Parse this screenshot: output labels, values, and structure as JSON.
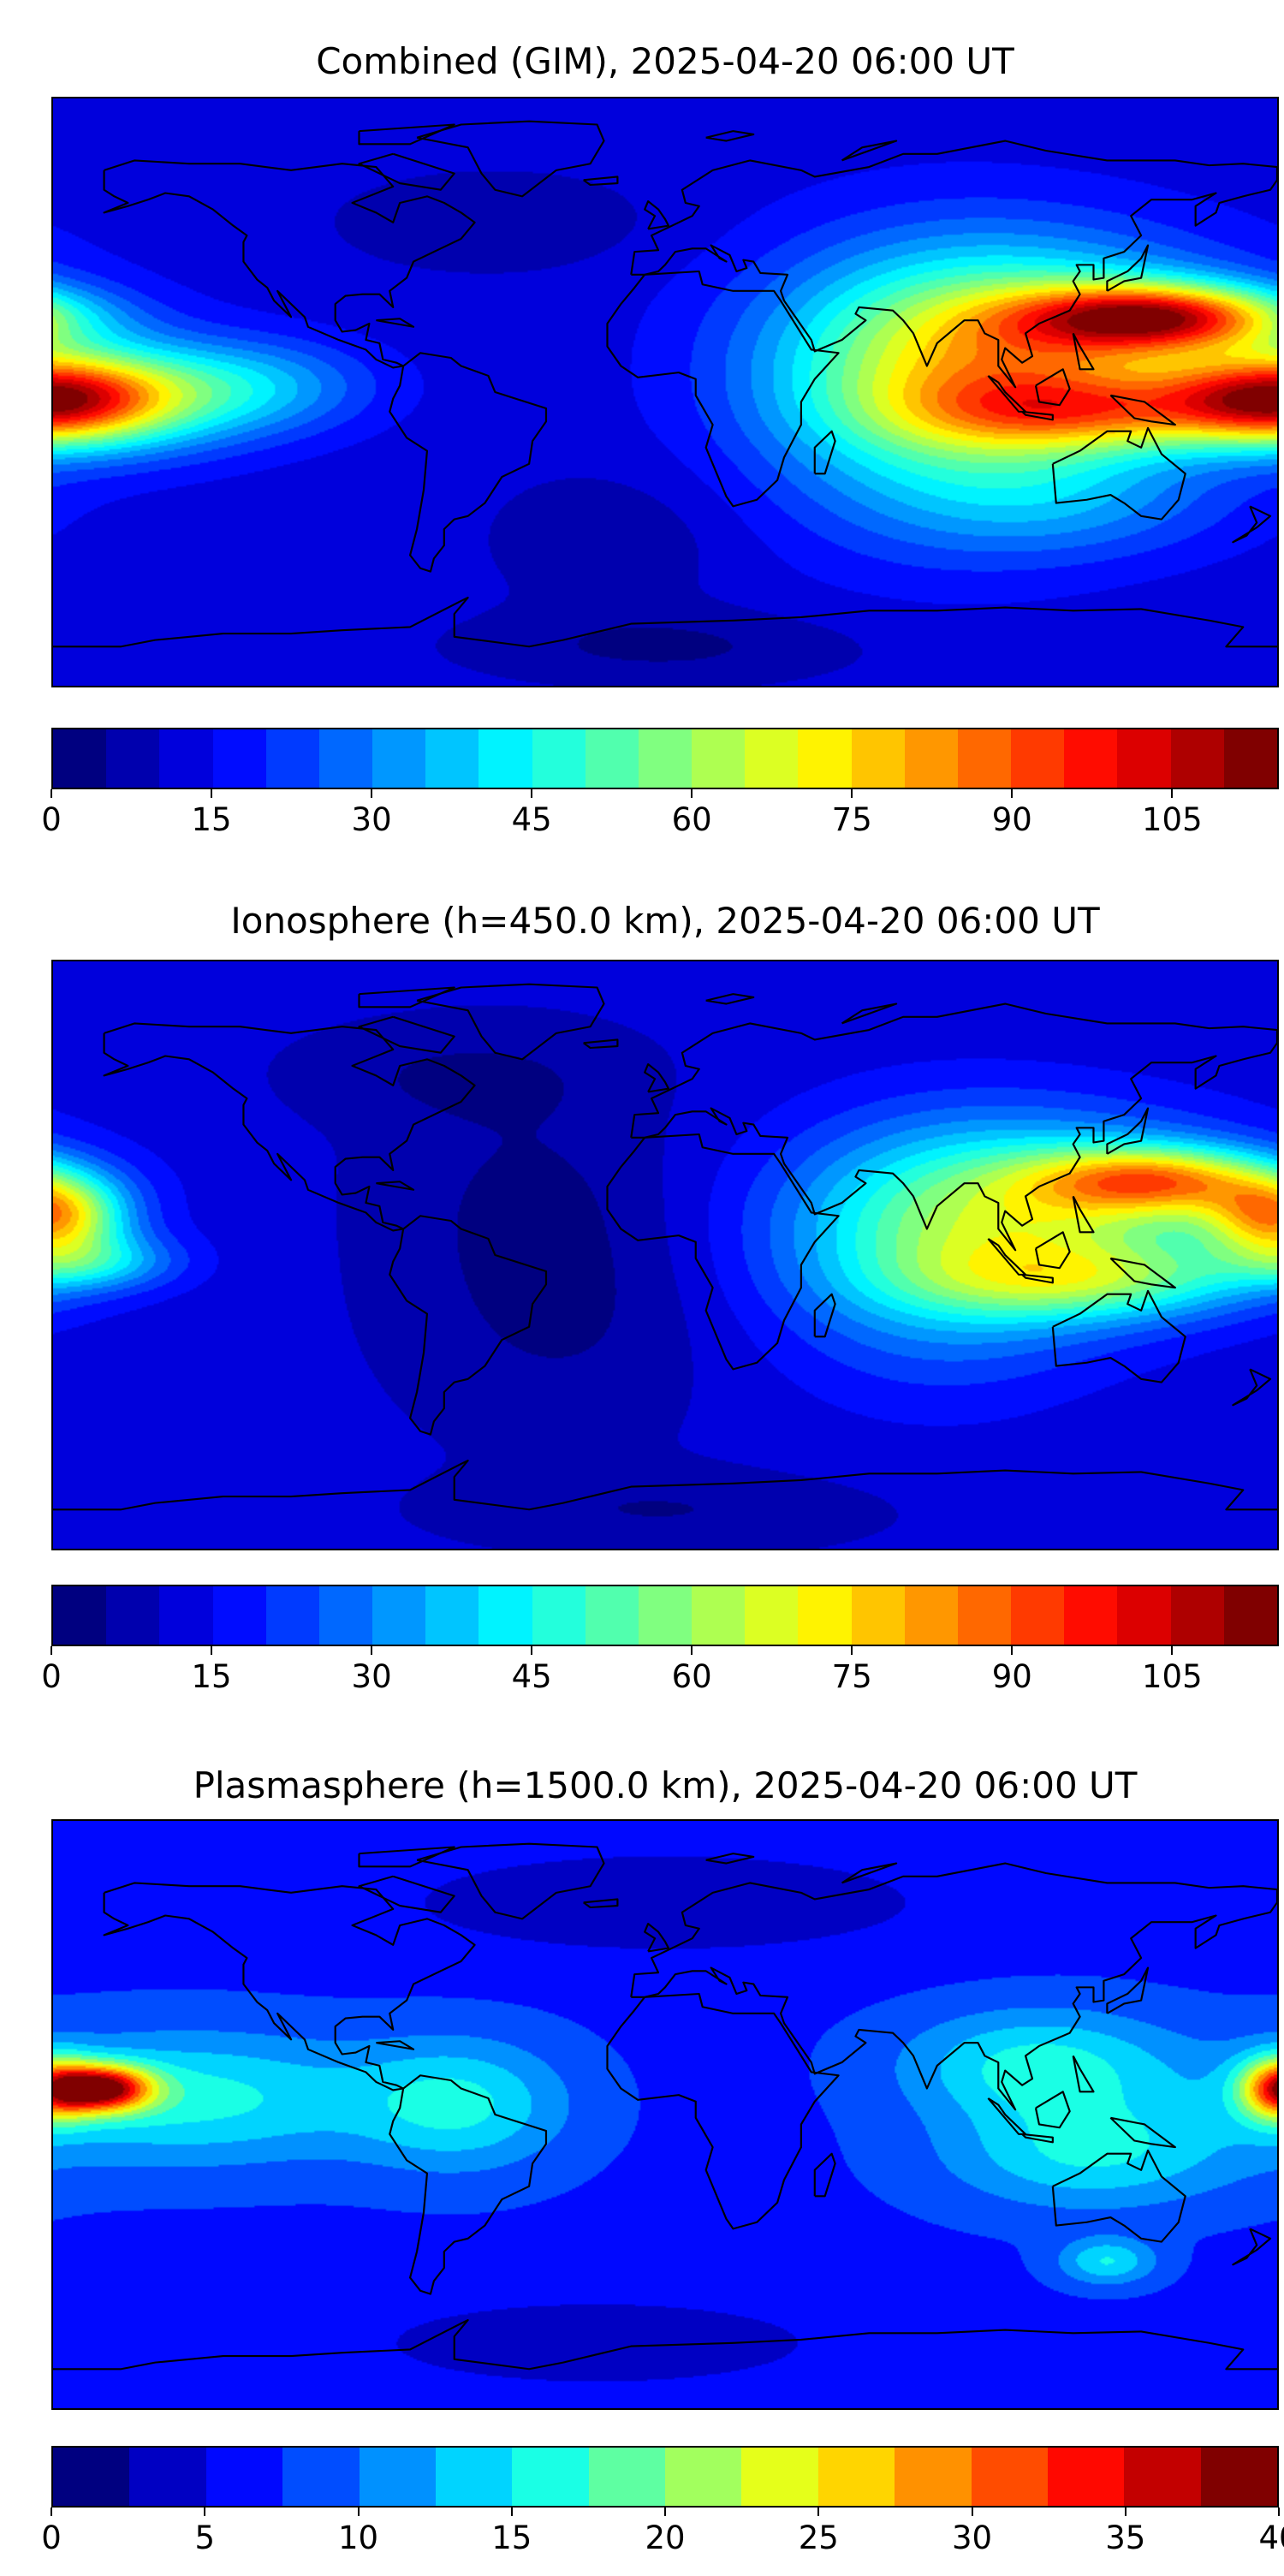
{
  "chart_data": [
    {
      "type": "heatmap",
      "title": "Combined (GIM), 2025-04-20 06:00 UT",
      "projection": "plate-carree",
      "lon_range": [
        -180,
        180
      ],
      "lat_range": [
        -90,
        90
      ],
      "colormap": "jet",
      "levels": {
        "min": 0,
        "max": 115,
        "step": 5
      },
      "colorbar_ticks": [
        "0",
        "15",
        "30",
        "45",
        "60",
        "75",
        "90",
        "105"
      ],
      "colorbar_tick_values": [
        0,
        15,
        30,
        45,
        60,
        75,
        90,
        105
      ],
      "field": {
        "base": 12,
        "components": [
          {
            "lon": 145,
            "lat": 23,
            "slon": 28,
            "slat": 7,
            "amp": 70
          },
          {
            "lon": 110,
            "lat": 12,
            "slon": 45,
            "slat": 22,
            "amp": 45
          },
          {
            "lon": 125,
            "lat": -6,
            "slon": 35,
            "slat": 8,
            "amp": 35
          },
          {
            "lon": 80,
            "lat": 0,
            "slon": 38,
            "slat": 30,
            "amp": 30
          },
          {
            "lon": 180,
            "lat": -2,
            "slon": 22,
            "slat": 9,
            "amp": 60
          },
          {
            "lon": -160,
            "lat": -2,
            "slon": 30,
            "slat": 12,
            "amp": 30
          },
          {
            "lon": -120,
            "lat": 2,
            "slon": 25,
            "slat": 10,
            "amp": 18
          },
          {
            "lon": 120,
            "lat": -35,
            "slon": 35,
            "slat": 12,
            "amp": 12
          },
          {
            "lon": -50,
            "lat": 52,
            "slon": 30,
            "slat": 10,
            "amp": -7
          },
          {
            "lon": -15,
            "lat": -45,
            "slon": 25,
            "slat": 15,
            "amp": -6
          },
          {
            "lon": 0,
            "lat": -78,
            "slon": 40,
            "slat": 8,
            "amp": -8
          }
        ]
      }
    },
    {
      "type": "heatmap",
      "title": "Ionosphere  (h=450.0 km), 2025-04-20 06:00 UT",
      "projection": "plate-carree",
      "lon_range": [
        -180,
        180
      ],
      "lat_range": [
        -90,
        90
      ],
      "colormap": "jet",
      "levels": {
        "min": 0,
        "max": 115,
        "step": 5
      },
      "colorbar_ticks": [
        "0",
        "15",
        "30",
        "45",
        "60",
        "75",
        "90",
        "105"
      ],
      "colorbar_tick_values": [
        0,
        15,
        30,
        45,
        60,
        75,
        90,
        105
      ],
      "field": {
        "base": 11,
        "components": [
          {
            "lon": 145,
            "lat": 23,
            "slon": 25,
            "slat": 7,
            "amp": 50
          },
          {
            "lon": 115,
            "lat": 12,
            "slon": 45,
            "slat": 20,
            "amp": 40
          },
          {
            "lon": 125,
            "lat": -8,
            "slon": 35,
            "slat": 8,
            "amp": 25
          },
          {
            "lon": 80,
            "lat": 0,
            "slon": 35,
            "slat": 28,
            "amp": 22
          },
          {
            "lon": -180,
            "lat": 12,
            "slon": 14,
            "slat": 8,
            "amp": 55
          },
          {
            "lon": -170,
            "lat": -2,
            "slon": 18,
            "slat": 6,
            "amp": 25
          },
          {
            "lon": -40,
            "lat": 20,
            "slon": 30,
            "slat": 25,
            "amp": -6
          },
          {
            "lon": -30,
            "lat": -20,
            "slon": 30,
            "slat": 25,
            "amp": -6
          },
          {
            "lon": -60,
            "lat": 55,
            "slon": 30,
            "slat": 10,
            "amp": -6
          },
          {
            "lon": 0,
            "lat": -78,
            "slon": 40,
            "slat": 8,
            "amp": -6
          }
        ]
      }
    },
    {
      "type": "heatmap",
      "title": "Plasmasphere (h=1500.0 km), 2025-04-20 06:00 UT",
      "projection": "plate-carree",
      "lon_range": [
        -180,
        180
      ],
      "lat_range": [
        -90,
        90
      ],
      "colormap": "jet",
      "levels": {
        "min": 0,
        "max": 40,
        "step": 2.5
      },
      "colorbar_ticks": [
        "0",
        "5",
        "10",
        "15",
        "20",
        "25",
        "30",
        "35",
        "40"
      ],
      "colorbar_tick_values": [
        0,
        5,
        10,
        15,
        20,
        25,
        30,
        35,
        40
      ],
      "field": {
        "base": 7,
        "components": [
          {
            "lon": -165,
            "lat": 8,
            "slon": 10,
            "slat": 5,
            "amp": 26
          },
          {
            "lon": -140,
            "lat": 5,
            "slon": 40,
            "slat": 14,
            "amp": 9
          },
          {
            "lon": -60,
            "lat": 3,
            "slon": 22,
            "slat": 14,
            "amp": 8
          },
          {
            "lon": 110,
            "lat": 15,
            "slon": 28,
            "slat": 12,
            "amp": 9
          },
          {
            "lon": 125,
            "lat": -12,
            "slon": 30,
            "slat": 12,
            "amp": 8
          },
          {
            "lon": 180,
            "lat": 8,
            "slon": 8,
            "slat": 7,
            "amp": 18
          },
          {
            "lon": 130,
            "lat": -45,
            "slon": 10,
            "slat": 5,
            "amp": 8
          },
          {
            "lon": 0,
            "lat": 65,
            "slon": 60,
            "slat": 12,
            "amp": -4
          },
          {
            "lon": -20,
            "lat": -70,
            "slon": 50,
            "slat": 10,
            "amp": -4
          }
        ]
      }
    }
  ]
}
